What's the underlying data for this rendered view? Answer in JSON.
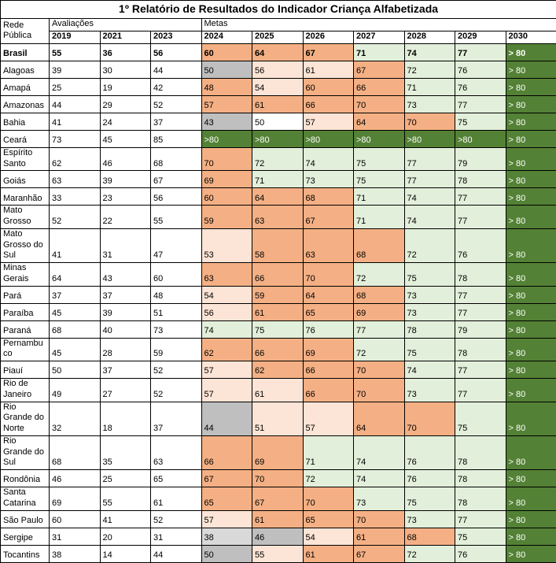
{
  "title": "1º Relatório de Resultados do Indicador Criança Alfabetizada",
  "header": {
    "row_label": "Rede Pública",
    "groups": [
      {
        "label": "Avaliações",
        "span": 3
      },
      {
        "label": "Metas",
        "span": 7
      }
    ],
    "years": [
      "2019",
      "2021",
      "2023",
      "2024",
      "2025",
      "2026",
      "2027",
      "2028",
      "2029",
      "2030"
    ]
  },
  "palette": {
    "orange": "#F4B084",
    "light_peach": "#FCE4D6",
    "gray": "#BFBFBF",
    "light_gray": "#D9D9D9",
    "light_green": "#E2EFDA",
    "dark_green": "#538135",
    "white": "#FFFFFF"
  },
  "chart_data": {
    "type": "table",
    "title": "1º Relatório de Resultados do Indicador Criança Alfabetizada",
    "columns": [
      "Rede Pública",
      "2019",
      "2021",
      "2023",
      "2024",
      "2025",
      "2026",
      "2027",
      "2028",
      "2029",
      "2030"
    ],
    "column_groups": {
      "Avaliações": [
        "2019",
        "2021",
        "2023"
      ],
      "Metas": [
        "2024",
        "2025",
        "2026",
        "2027",
        "2028",
        "2029",
        "2030"
      ]
    },
    "rows": [
      {
        "label": "Brasil",
        "bold": true,
        "avaliacoes": [
          "55",
          "36",
          "56"
        ],
        "metas": [
          "60",
          "64",
          "67",
          "71",
          "74",
          "77",
          "> 80"
        ],
        "meta_colors": [
          "orange",
          "orange",
          "orange",
          "light_green",
          "light_green",
          "light_green",
          "dark_green"
        ]
      },
      {
        "label": "Alagoas",
        "avaliacoes": [
          "39",
          "30",
          "44"
        ],
        "metas": [
          "50",
          "56",
          "61",
          "67",
          "72",
          "76",
          "> 80"
        ],
        "meta_colors": [
          "gray",
          "light_peach",
          "light_peach",
          "orange",
          "light_green",
          "light_green",
          "dark_green"
        ]
      },
      {
        "label": "Amapá",
        "avaliacoes": [
          "25",
          "19",
          "42"
        ],
        "metas": [
          "48",
          "54",
          "60",
          "66",
          "71",
          "76",
          "> 80"
        ],
        "meta_colors": [
          "orange",
          "light_peach",
          "orange",
          "orange",
          "light_green",
          "light_green",
          "dark_green"
        ]
      },
      {
        "label": "Amazonas",
        "avaliacoes": [
          "44",
          "29",
          "52"
        ],
        "metas": [
          "57",
          "61",
          "66",
          "70",
          "73",
          "77",
          "> 80"
        ],
        "meta_colors": [
          "orange",
          "orange",
          "orange",
          "orange",
          "light_green",
          "light_green",
          "dark_green"
        ]
      },
      {
        "label": "Bahia",
        "avaliacoes": [
          "41",
          "24",
          "37"
        ],
        "metas": [
          "43",
          "50",
          "57",
          "64",
          "70",
          "75",
          "> 80"
        ],
        "meta_colors": [
          "gray",
          "white",
          "light_peach",
          "orange",
          "orange",
          "light_green",
          "dark_green"
        ]
      },
      {
        "label": "Ceará",
        "avaliacoes": [
          "73",
          "45",
          "85"
        ],
        "metas": [
          ">80",
          ">80",
          ">80",
          ">80",
          ">80",
          ">80",
          "> 80"
        ],
        "meta_colors": [
          "dark_green",
          "dark_green",
          "dark_green",
          "dark_green",
          "dark_green",
          "dark_green",
          "dark_green"
        ]
      },
      {
        "label": "Espírito Santo",
        "avaliacoes": [
          "62",
          "46",
          "68"
        ],
        "metas": [
          "70",
          "72",
          "74",
          "75",
          "77",
          "79",
          "> 80"
        ],
        "meta_colors": [
          "orange",
          "light_green",
          "light_green",
          "light_green",
          "light_green",
          "light_green",
          "dark_green"
        ]
      },
      {
        "label": "Goiás",
        "avaliacoes": [
          "63",
          "39",
          "67"
        ],
        "metas": [
          "69",
          "71",
          "73",
          "75",
          "77",
          "78",
          "> 80"
        ],
        "meta_colors": [
          "orange",
          "light_green",
          "light_green",
          "light_green",
          "light_green",
          "light_green",
          "dark_green"
        ]
      },
      {
        "label": "Maranhão",
        "avaliacoes": [
          "33",
          "23",
          "56"
        ],
        "metas": [
          "60",
          "64",
          "68",
          "71",
          "74",
          "77",
          "> 80"
        ],
        "meta_colors": [
          "orange",
          "orange",
          "orange",
          "light_green",
          "light_green",
          "light_green",
          "dark_green"
        ]
      },
      {
        "label": "Mato Grosso",
        "avaliacoes": [
          "52",
          "22",
          "55"
        ],
        "metas": [
          "59",
          "63",
          "67",
          "71",
          "74",
          "77",
          "> 80"
        ],
        "meta_colors": [
          "orange",
          "orange",
          "orange",
          "light_green",
          "light_green",
          "light_green",
          "dark_green"
        ]
      },
      {
        "label": "Mato Grosso do Sul",
        "avaliacoes": [
          "41",
          "31",
          "47"
        ],
        "metas": [
          "53",
          "58",
          "63",
          "68",
          "72",
          "76",
          "> 80"
        ],
        "meta_colors": [
          "light_peach",
          "orange",
          "orange",
          "orange",
          "light_green",
          "light_green",
          "dark_green"
        ]
      },
      {
        "label": "Minas Gerais",
        "avaliacoes": [
          "64",
          "43",
          "60"
        ],
        "metas": [
          "63",
          "66",
          "70",
          "72",
          "75",
          "78",
          "> 80"
        ],
        "meta_colors": [
          "orange",
          "orange",
          "orange",
          "light_green",
          "light_green",
          "light_green",
          "dark_green"
        ]
      },
      {
        "label": "Pará",
        "avaliacoes": [
          "37",
          "37",
          "48"
        ],
        "metas": [
          "54",
          "59",
          "64",
          "68",
          "73",
          "77",
          "> 80"
        ],
        "meta_colors": [
          "light_peach",
          "orange",
          "orange",
          "orange",
          "light_green",
          "light_green",
          "dark_green"
        ]
      },
      {
        "label": "Paraíba",
        "avaliacoes": [
          "45",
          "39",
          "51"
        ],
        "metas": [
          "56",
          "61",
          "65",
          "69",
          "73",
          "77",
          "> 80"
        ],
        "meta_colors": [
          "light_peach",
          "orange",
          "orange",
          "orange",
          "light_green",
          "light_green",
          "dark_green"
        ]
      },
      {
        "label": "Paraná",
        "avaliacoes": [
          "68",
          "40",
          "73"
        ],
        "metas": [
          "74",
          "75",
          "76",
          "77",
          "78",
          "79",
          "> 80"
        ],
        "meta_colors": [
          "light_green",
          "light_green",
          "light_green",
          "light_green",
          "light_green",
          "light_green",
          "dark_green"
        ]
      },
      {
        "label": "Pernambuco",
        "avaliacoes": [
          "45",
          "28",
          "59"
        ],
        "metas": [
          "62",
          "66",
          "69",
          "72",
          "75",
          "78",
          "> 80"
        ],
        "meta_colors": [
          "orange",
          "orange",
          "orange",
          "light_green",
          "light_green",
          "light_green",
          "dark_green"
        ]
      },
      {
        "label": "Piauí",
        "avaliacoes": [
          "50",
          "37",
          "52"
        ],
        "metas": [
          "57",
          "62",
          "66",
          "70",
          "74",
          "77",
          "> 80"
        ],
        "meta_colors": [
          "light_peach",
          "orange",
          "orange",
          "orange",
          "light_green",
          "light_green",
          "dark_green"
        ]
      },
      {
        "label": "Rio de Janeiro",
        "avaliacoes": [
          "49",
          "27",
          "52"
        ],
        "metas": [
          "57",
          "61",
          "66",
          "70",
          "73",
          "77",
          "> 80"
        ],
        "meta_colors": [
          "light_peach",
          "light_peach",
          "orange",
          "orange",
          "light_green",
          "light_green",
          "dark_green"
        ]
      },
      {
        "label": "Rio Grande do Norte",
        "avaliacoes": [
          "32",
          "18",
          "37"
        ],
        "metas": [
          "44",
          "51",
          "57",
          "64",
          "70",
          "75",
          "> 80"
        ],
        "meta_colors": [
          "gray",
          "light_peach",
          "light_peach",
          "orange",
          "orange",
          "light_green",
          "dark_green"
        ]
      },
      {
        "label": "Rio Grande do Sul",
        "avaliacoes": [
          "68",
          "35",
          "63"
        ],
        "metas": [
          "66",
          "69",
          "71",
          "74",
          "76",
          "78",
          "> 80"
        ],
        "meta_colors": [
          "orange",
          "orange",
          "light_green",
          "light_green",
          "light_green",
          "light_green",
          "dark_green"
        ]
      },
      {
        "label": "Rondônia",
        "avaliacoes": [
          "46",
          "25",
          "65"
        ],
        "metas": [
          "67",
          "70",
          "72",
          "74",
          "76",
          "78",
          "> 80"
        ],
        "meta_colors": [
          "orange",
          "orange",
          "light_green",
          "light_green",
          "light_green",
          "light_green",
          "dark_green"
        ]
      },
      {
        "label": "Santa Catarina",
        "avaliacoes": [
          "69",
          "55",
          "61"
        ],
        "metas": [
          "65",
          "67",
          "70",
          "73",
          "75",
          "78",
          "> 80"
        ],
        "meta_colors": [
          "orange",
          "orange",
          "orange",
          "light_green",
          "light_green",
          "light_green",
          "dark_green"
        ]
      },
      {
        "label": "São Paulo",
        "avaliacoes": [
          "60",
          "41",
          "52"
        ],
        "metas": [
          "57",
          "61",
          "65",
          "70",
          "73",
          "77",
          "> 80"
        ],
        "meta_colors": [
          "light_peach",
          "orange",
          "orange",
          "orange",
          "light_green",
          "light_green",
          "dark_green"
        ]
      },
      {
        "label": "Sergipe",
        "avaliacoes": [
          "31",
          "20",
          "31"
        ],
        "metas": [
          "38",
          "46",
          "54",
          "61",
          "68",
          "75",
          "> 80"
        ],
        "meta_colors": [
          "light_gray",
          "gray",
          "light_peach",
          "orange",
          "orange",
          "light_green",
          "dark_green"
        ]
      },
      {
        "label": "Tocantins",
        "avaliacoes": [
          "38",
          "14",
          "44"
        ],
        "metas": [
          "50",
          "55",
          "61",
          "67",
          "72",
          "76",
          "> 80"
        ],
        "meta_colors": [
          "gray",
          "light_peach",
          "orange",
          "orange",
          "light_green",
          "light_green",
          "dark_green"
        ]
      }
    ]
  }
}
